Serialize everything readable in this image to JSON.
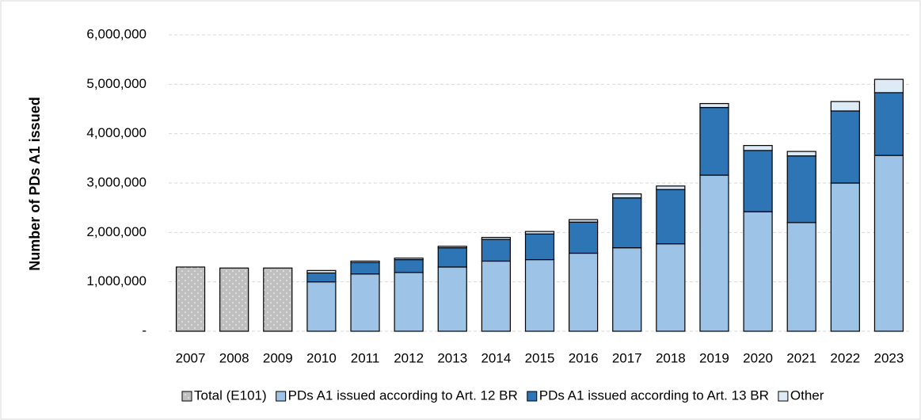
{
  "chart_data": {
    "type": "stacked_bar",
    "y_label": "Number of PDs A1 issued",
    "categories": [
      "2007",
      "2008",
      "2009",
      "2010",
      "2011",
      "2012",
      "2013",
      "2014",
      "2015",
      "2016",
      "2017",
      "2018",
      "2019",
      "2020",
      "2021",
      "2022",
      "2023"
    ],
    "series": [
      {
        "name": "Total (E101)",
        "color": "#bfbfbf",
        "pattern": "dots",
        "values": [
          1300000,
          1280000,
          1280000,
          null,
          null,
          null,
          null,
          null,
          null,
          null,
          null,
          null,
          null,
          null,
          null,
          null,
          null
        ]
      },
      {
        "name": "PDs A1 issued according to Art. 12 BR",
        "color": "#9dc3e6",
        "values": [
          null,
          null,
          null,
          1000000,
          1160000,
          1190000,
          1300000,
          1420000,
          1450000,
          1580000,
          1690000,
          1770000,
          3160000,
          2420000,
          2200000,
          3000000,
          3560000
        ]
      },
      {
        "name": "PDs A1 issued according to Art. 13 BR",
        "color": "#2e75b6",
        "values": [
          null,
          null,
          null,
          180000,
          230000,
          260000,
          390000,
          440000,
          520000,
          630000,
          1010000,
          1100000,
          1370000,
          1240000,
          1350000,
          1460000,
          1270000
        ]
      },
      {
        "name": "Other",
        "color": "#deebf7",
        "values": [
          null,
          null,
          null,
          50000,
          30000,
          30000,
          30000,
          40000,
          50000,
          50000,
          80000,
          70000,
          80000,
          100000,
          90000,
          190000,
          270000
        ]
      }
    ],
    "ylim": [
      0,
      6000000
    ],
    "yticks": [
      {
        "value": 0,
        "label": "-"
      },
      {
        "value": 1000000,
        "label": "1,000,000"
      },
      {
        "value": 2000000,
        "label": "2,000,000"
      },
      {
        "value": 3000000,
        "label": "3,000,000"
      },
      {
        "value": 4000000,
        "label": "4,000,000"
      },
      {
        "value": 5000000,
        "label": "5,000,000"
      },
      {
        "value": 6000000,
        "label": "6,000,000"
      }
    ],
    "grid": true,
    "legend": "bottom"
  }
}
